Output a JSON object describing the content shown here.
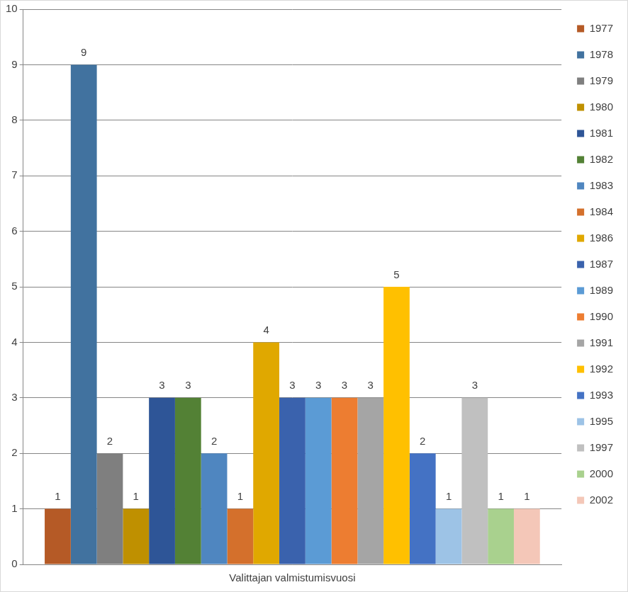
{
  "chart_data": {
    "type": "bar",
    "categories": [
      "Valittajan valmistumisvuosi"
    ],
    "series": [
      {
        "name": "1977",
        "color": "#b55a26",
        "values": [
          1
        ]
      },
      {
        "name": "1978",
        "color": "#41729f",
        "values": [
          9
        ]
      },
      {
        "name": "1979",
        "color": "#7f7f7f",
        "values": [
          2
        ]
      },
      {
        "name": "1980",
        "color": "#bf9000",
        "values": [
          1
        ]
      },
      {
        "name": "1981",
        "color": "#2e5597",
        "values": [
          3
        ]
      },
      {
        "name": "1982",
        "color": "#538135",
        "values": [
          3
        ]
      },
      {
        "name": "1983",
        "color": "#4f86c0",
        "values": [
          2
        ]
      },
      {
        "name": "1984",
        "color": "#d4702c",
        "values": [
          1
        ]
      },
      {
        "name": "1986",
        "color": "#e0a800",
        "values": [
          4
        ]
      },
      {
        "name": "1987",
        "color": "#3a62ad",
        "values": [
          3
        ]
      },
      {
        "name": "1989",
        "color": "#5b9bd5",
        "values": [
          3
        ]
      },
      {
        "name": "1990",
        "color": "#ed7d31",
        "values": [
          3
        ]
      },
      {
        "name": "1991",
        "color": "#a5a5a5",
        "values": [
          3
        ]
      },
      {
        "name": "1992",
        "color": "#ffc000",
        "values": [
          5
        ]
      },
      {
        "name": "1993",
        "color": "#4472c4",
        "values": [
          2
        ]
      },
      {
        "name": "1995",
        "color": "#9dc3e6",
        "values": [
          1
        ]
      },
      {
        "name": "1997",
        "color": "#c0c0c0",
        "values": [
          3
        ]
      },
      {
        "name": "2000",
        "color": "#a9d18e",
        "values": [
          1
        ]
      },
      {
        "name": "2002",
        "color": "#f4c7b8",
        "values": [
          1
        ]
      }
    ],
    "ylim": [
      0,
      10
    ],
    "yticks": [
      0,
      1,
      2,
      3,
      4,
      5,
      6,
      7,
      8,
      9,
      10
    ],
    "grid": true,
    "legend": "right",
    "data_labels": true
  }
}
